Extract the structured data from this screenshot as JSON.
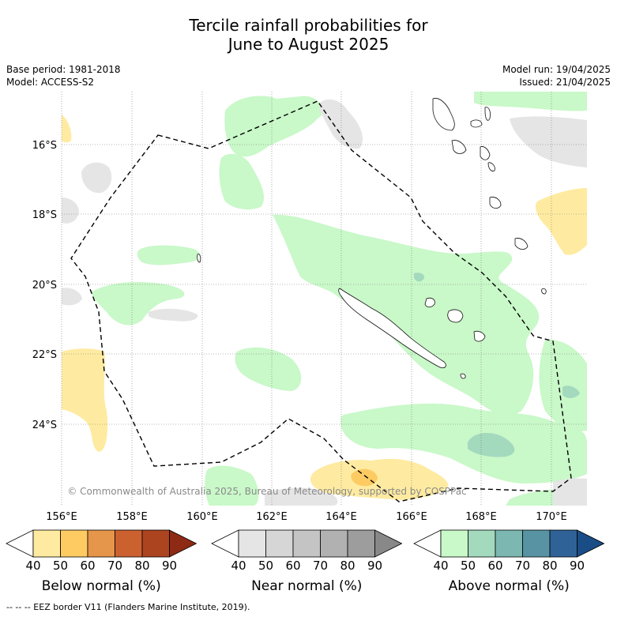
{
  "title": {
    "line1": "Tercile rainfall probabilities for",
    "line2": "June to August 2025"
  },
  "meta_left": {
    "base_period": "Base period: 1981-2018",
    "model": "Model: ACCESS-S2"
  },
  "meta_right": {
    "model_run": "Model run: 19/04/2025",
    "issued": "Issued: 21/04/2025"
  },
  "map": {
    "lat_labels": [
      "16°S",
      "18°S",
      "20°S",
      "22°S",
      "24°S"
    ],
    "lon_labels": [
      "156°E",
      "158°E",
      "160°E",
      "162°E",
      "164°E",
      "166°E",
      "168°E",
      "170°E"
    ],
    "copyright": "© Commonwealth of Australia 2025, Bureau of Meteorology, supported by COSPPac"
  },
  "legends": [
    {
      "title": "Below normal (%)",
      "ticks": [
        "40",
        "50",
        "60",
        "70",
        "80",
        "90"
      ],
      "colors": [
        "#ffffff",
        "#feeba1",
        "#fdcb62",
        "#e5964a",
        "#cc6130",
        "#ad4420",
        "#8e2a13"
      ]
    },
    {
      "title": "Near normal (%)",
      "ticks": [
        "40",
        "50",
        "60",
        "70",
        "80",
        "90"
      ],
      "colors": [
        "#ffffff",
        "#e5e5e5",
        "#d6d6d6",
        "#c4c4c4",
        "#b1b1b1",
        "#9d9d9d",
        "#888888"
      ]
    },
    {
      "title": "Above normal (%)",
      "ticks": [
        "40",
        "50",
        "60",
        "70",
        "80",
        "90"
      ],
      "colors": [
        "#ffffff",
        "#c9f8c9",
        "#a3d9bd",
        "#7cb7b1",
        "#5793a3",
        "#2f6296",
        "#1a4d86"
      ]
    }
  ],
  "footnote": "-- -- -- EEZ border V11 (Flanders Marine Institute, 2019)."
}
